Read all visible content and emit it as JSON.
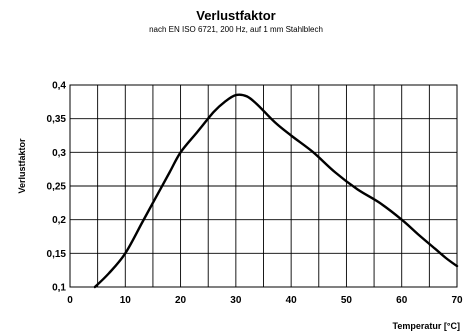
{
  "chart_data": {
    "type": "line",
    "title": "Verlustfaktor",
    "subtitle": "nach EN ISO 6721, 200 Hz, auf 1 mm Stahlblech",
    "xlabel": "Temperatur [°C]",
    "ylabel": "Verlustfaktor",
    "xlim": [
      0,
      70
    ],
    "ylim": [
      0.1,
      0.4
    ],
    "x_ticks": [
      0,
      10,
      20,
      30,
      40,
      50,
      60,
      70
    ],
    "x_tick_labels": [
      "0",
      "10",
      "20",
      "30",
      "40",
      "50",
      "60",
      "70"
    ],
    "y_ticks": [
      0.1,
      0.15,
      0.2,
      0.25,
      0.3,
      0.35,
      0.4
    ],
    "y_tick_labels": [
      "0,1",
      "0,15",
      "0,2",
      "0,25",
      "0,3",
      "0,35",
      "0,4"
    ],
    "x_grid_step": 5,
    "grid": true,
    "series": [
      {
        "x": [
          4.5,
          7,
          10,
          13,
          15,
          18,
          20,
          23,
          26,
          28,
          30,
          32,
          34,
          37,
          40,
          44,
          48,
          52,
          56,
          60,
          63,
          66,
          68,
          70
        ],
        "y": [
          0.1,
          0.12,
          0.15,
          0.195,
          0.225,
          0.27,
          0.3,
          0.33,
          0.36,
          0.375,
          0.385,
          0.383,
          0.37,
          0.345,
          0.325,
          0.3,
          0.27,
          0.245,
          0.225,
          0.2,
          0.178,
          0.157,
          0.143,
          0.131
        ]
      }
    ]
  }
}
